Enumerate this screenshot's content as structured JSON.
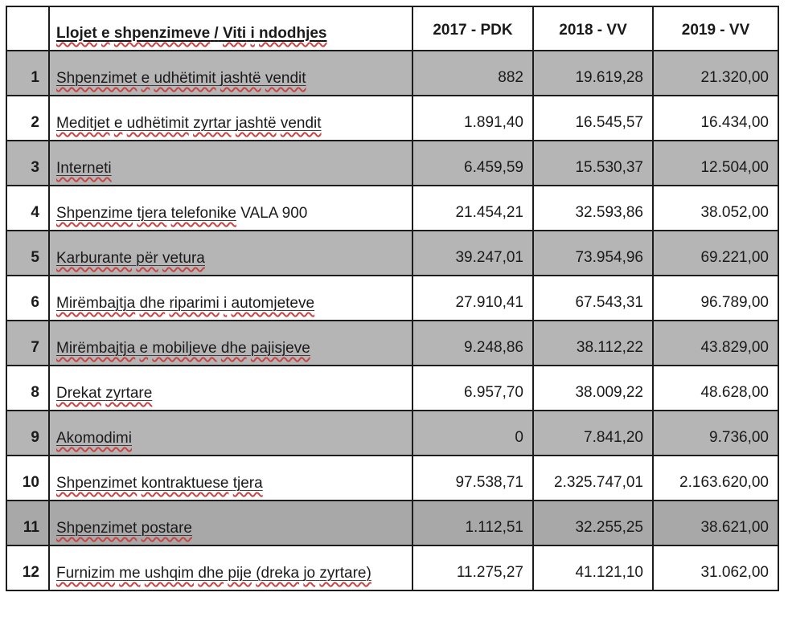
{
  "table": {
    "header": {
      "corner": "",
      "col_label": "Llojet e shpenzimeve / Viti i ndodhjes",
      "col_2017": "2017 - PDK",
      "col_2018": "2018 - VV",
      "col_2019": "2019 - VV"
    },
    "rows": [
      {
        "num": "1",
        "label": "Shpenzimet e udhëtimit jashtë vendit",
        "label_plain": "",
        "v2017": "882",
        "v2018": "19.619,28",
        "v2019": "21.320,00",
        "shade": "gray"
      },
      {
        "num": "2",
        "label": "Meditjet e udhëtimit zyrtar jashtë vendit",
        "label_plain": "",
        "v2017": "1.891,40",
        "v2018": "16.545,57",
        "v2019": "16.434,00",
        "shade": "white"
      },
      {
        "num": "3",
        "label": "Interneti",
        "label_plain": "",
        "v2017": "6.459,59",
        "v2018": "15.530,37",
        "v2019": "12.504,00",
        "shade": "gray"
      },
      {
        "num": "4",
        "label": "Shpenzime tjera telefonike",
        "label_plain": " VALA 900",
        "v2017": "21.454,21",
        "v2018": "32.593,86",
        "v2019": "38.052,00",
        "shade": "white"
      },
      {
        "num": "5",
        "label": "Karburante për vetura",
        "label_plain": "",
        "v2017": "39.247,01",
        "v2018": "73.954,96",
        "v2019": "69.221,00",
        "shade": "gray"
      },
      {
        "num": "6",
        "label": "Mirëmbajtja dhe riparimi i automjeteve",
        "label_plain": "",
        "v2017": "27.910,41",
        "v2018": "67.543,31",
        "v2019": "96.789,00",
        "shade": "white"
      },
      {
        "num": "7",
        "label": "Mirëmbajtja e mobiljeve dhe pajisjeve",
        "label_plain": "",
        "v2017": "9.248,86",
        "v2018": "38.112,22",
        "v2019": "43.829,00",
        "shade": "gray"
      },
      {
        "num": "8",
        "label": "Drekat zyrtare",
        "label_plain": "",
        "v2017": "6.957,70",
        "v2018": "38.009,22",
        "v2019": "48.628,00",
        "shade": "white"
      },
      {
        "num": "9",
        "label": "Akomodimi",
        "label_plain": "",
        "v2017": "0",
        "v2018": "7.841,20",
        "v2019": "9.736,00",
        "shade": "gray"
      },
      {
        "num": "10",
        "label": "Shpenzimet kontraktuese tjera",
        "label_plain": "",
        "v2017": "97.538,71",
        "v2018": "2.325.747,01",
        "v2019": "2.163.620,00",
        "shade": "white"
      },
      {
        "num": "11",
        "label": "Shpenzimet postare",
        "label_plain": "",
        "v2017": "1.112,51",
        "v2018": "32.255,25",
        "v2019": "38.621,00",
        "shade": "graydark"
      },
      {
        "num": "12",
        "label": "Furnizim me ushqim dhe pije (dreka jo zyrtare)",
        "label_plain": "",
        "v2017": "11.275,27",
        "v2018": "41.121,10",
        "v2019": "31.062,00",
        "shade": "white"
      }
    ]
  },
  "colors": {
    "row_shade_gray": "#b5b5b5",
    "row_shade_dark_gray": "#a8a8a8",
    "border": "#1c1c1c",
    "squiggle_red": "#c94444",
    "text": "#1a1a1a"
  }
}
